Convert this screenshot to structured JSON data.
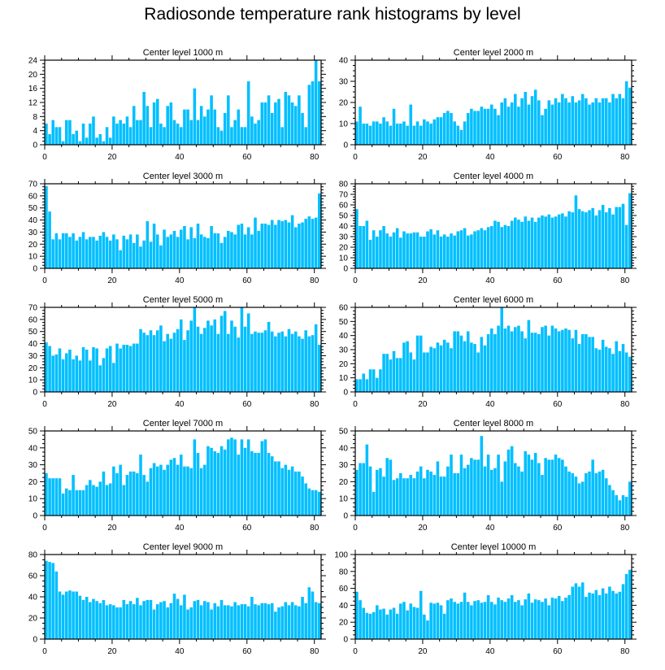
{
  "figure": {
    "title": "Radiosonde temperature rank histograms by level",
    "bar_color": "#00bfff",
    "axis_color": "#000000"
  },
  "chart_data": [
    {
      "type": "bar",
      "title": "Center level 1000 m",
      "xlim": [
        0,
        82
      ],
      "ylim": [
        0,
        24
      ],
      "xticks": [
        0,
        20,
        40,
        60,
        80
      ],
      "yticks": [
        0,
        4,
        8,
        12,
        16,
        20,
        24
      ],
      "x_start": 0,
      "values": [
        6,
        3,
        7,
        5,
        5,
        1,
        7,
        7,
        3,
        4,
        1,
        6,
        2,
        6,
        8,
        2,
        3,
        1,
        5,
        2,
        8,
        6,
        7,
        6,
        8,
        5,
        11,
        7,
        7,
        15,
        11,
        5,
        12,
        13,
        6,
        5,
        11,
        12,
        7,
        6,
        5,
        10,
        10,
        7,
        16,
        7,
        11,
        8,
        10,
        14,
        10,
        5,
        4,
        9,
        14,
        5,
        7,
        10,
        5,
        5,
        18,
        8,
        6,
        7,
        12,
        12,
        14,
        9,
        12,
        13,
        5,
        15,
        14,
        12,
        11,
        14,
        9,
        5,
        17,
        18,
        24,
        18
      ]
    },
    {
      "type": "bar",
      "title": "Center level 2000 m",
      "xlim": [
        0,
        82
      ],
      "ylim": [
        0,
        40
      ],
      "xticks": [
        0,
        20,
        40,
        60,
        80
      ],
      "yticks": [
        0,
        10,
        20,
        30,
        40
      ],
      "x_start": 0,
      "values": [
        11,
        18,
        10,
        10,
        9,
        11,
        11,
        10,
        13,
        11,
        9,
        17,
        10,
        10,
        11,
        9,
        19,
        9,
        11,
        9,
        12,
        11,
        10,
        12,
        13,
        13,
        15,
        16,
        15,
        11,
        9,
        7,
        11,
        15,
        17,
        16,
        16,
        18,
        17,
        17,
        19,
        17,
        14,
        20,
        22,
        18,
        20,
        24,
        18,
        22,
        25,
        19,
        23,
        26,
        21,
        14,
        17,
        21,
        19,
        22,
        20,
        24,
        22,
        20,
        23,
        20,
        21,
        24,
        22,
        19,
        20,
        22,
        20,
        22,
        22,
        20,
        24,
        22,
        24,
        22,
        30,
        27
      ]
    },
    {
      "type": "bar",
      "title": "Center level 3000 m",
      "xlim": [
        0,
        82
      ],
      "ylim": [
        0,
        70
      ],
      "xticks": [
        0,
        20,
        40,
        60,
        80
      ],
      "yticks": [
        0,
        10,
        20,
        30,
        40,
        50,
        60,
        70
      ],
      "x_start": 0,
      "values": [
        68,
        47,
        24,
        29,
        24,
        29,
        29,
        26,
        29,
        23,
        26,
        30,
        24,
        26,
        26,
        23,
        27,
        30,
        26,
        23,
        28,
        24,
        15,
        27,
        24,
        28,
        21,
        28,
        18,
        23,
        39,
        22,
        37,
        28,
        19,
        32,
        26,
        28,
        31,
        26,
        32,
        35,
        24,
        34,
        25,
        37,
        28,
        26,
        25,
        35,
        29,
        29,
        21,
        26,
        31,
        30,
        28,
        36,
        37,
        28,
        34,
        28,
        42,
        31,
        37,
        37,
        36,
        40,
        36,
        40,
        39,
        40,
        38,
        44,
        34,
        37,
        38,
        41,
        43,
        41,
        42,
        62
      ]
    },
    {
      "type": "bar",
      "title": "Center level 4000 m",
      "xlim": [
        0,
        82
      ],
      "ylim": [
        0,
        80
      ],
      "xticks": [
        0,
        20,
        40,
        60,
        80
      ],
      "yticks": [
        0,
        10,
        20,
        30,
        40,
        50,
        60,
        70,
        80
      ],
      "x_start": 0,
      "values": [
        56,
        40,
        40,
        45,
        27,
        36,
        30,
        36,
        40,
        33,
        30,
        34,
        38,
        29,
        35,
        33,
        33,
        34,
        34,
        30,
        30,
        35,
        37,
        32,
        36,
        30,
        32,
        30,
        33,
        31,
        35,
        36,
        38,
        31,
        32,
        35,
        36,
        38,
        36,
        39,
        40,
        45,
        44,
        39,
        41,
        40,
        45,
        48,
        46,
        44,
        49,
        45,
        48,
        44,
        48,
        50,
        49,
        51,
        48,
        49,
        51,
        52,
        49,
        54,
        53,
        69,
        56,
        54,
        53,
        55,
        57,
        50,
        55,
        60,
        53,
        57,
        51,
        58,
        58,
        61,
        41,
        71
      ]
    },
    {
      "type": "bar",
      "title": "Center level 5000 m",
      "xlim": [
        0,
        82
      ],
      "ylim": [
        0,
        70
      ],
      "xticks": [
        0,
        20,
        40,
        60,
        80
      ],
      "yticks": [
        0,
        10,
        20,
        30,
        40,
        50,
        60,
        70
      ],
      "x_start": 0,
      "values": [
        41,
        38,
        30,
        31,
        36,
        27,
        32,
        35,
        27,
        30,
        26,
        37,
        35,
        26,
        37,
        36,
        22,
        28,
        36,
        38,
        24,
        40,
        36,
        39,
        39,
        38,
        40,
        40,
        52,
        49,
        47,
        51,
        47,
        51,
        55,
        42,
        48,
        44,
        49,
        52,
        60,
        43,
        51,
        59,
        71,
        54,
        48,
        53,
        59,
        55,
        60,
        48,
        63,
        67,
        48,
        59,
        54,
        45,
        70,
        54,
        65,
        48,
        50,
        49,
        49,
        51,
        58,
        50,
        46,
        49,
        50,
        46,
        52,
        48,
        50,
        46,
        44,
        51,
        46,
        47,
        56,
        39
      ]
    },
    {
      "type": "bar",
      "title": "Center level 6000 m",
      "xlim": [
        0,
        82
      ],
      "ylim": [
        0,
        60
      ],
      "xticks": [
        0,
        20,
        40,
        60,
        80
      ],
      "yticks": [
        0,
        10,
        20,
        30,
        40,
        50,
        60
      ],
      "x_start": 0,
      "values": [
        9,
        9,
        13,
        9,
        16,
        16,
        10,
        16,
        27,
        27,
        23,
        29,
        24,
        24,
        35,
        36,
        28,
        23,
        40,
        40,
        28,
        28,
        32,
        31,
        35,
        33,
        37,
        35,
        31,
        43,
        43,
        40,
        36,
        43,
        35,
        34,
        28,
        39,
        33,
        41,
        45,
        41,
        47,
        62,
        45,
        47,
        43,
        46,
        47,
        43,
        38,
        51,
        42,
        42,
        41,
        46,
        47,
        40,
        47,
        45,
        43,
        44,
        45,
        44,
        38,
        44,
        34,
        41,
        41,
        39,
        39,
        31,
        30,
        37,
        32,
        31,
        27,
        36,
        29,
        34,
        28,
        25
      ]
    },
    {
      "type": "bar",
      "title": "Center level 7000 m",
      "xlim": [
        0,
        82
      ],
      "ylim": [
        0,
        50
      ],
      "xticks": [
        0,
        20,
        40,
        60,
        80
      ],
      "yticks": [
        0,
        10,
        20,
        30,
        40,
        50
      ],
      "x_start": 0,
      "values": [
        25,
        22,
        22,
        22,
        22,
        13,
        16,
        15,
        24,
        15,
        15,
        15,
        18,
        21,
        18,
        17,
        20,
        26,
        18,
        19,
        29,
        25,
        30,
        18,
        24,
        26,
        26,
        25,
        36,
        24,
        20,
        28,
        31,
        29,
        30,
        27,
        30,
        33,
        34,
        30,
        36,
        29,
        29,
        28,
        45,
        37,
        28,
        30,
        41,
        40,
        38,
        37,
        41,
        39,
        45,
        46,
        45,
        36,
        45,
        40,
        45,
        38,
        37,
        37,
        44,
        45,
        37,
        35,
        32,
        32,
        28,
        30,
        27,
        29,
        26,
        26,
        23,
        19,
        16,
        15,
        15,
        14
      ]
    },
    {
      "type": "bar",
      "title": "Center level 8000 m",
      "xlim": [
        0,
        82
      ],
      "ylim": [
        0,
        50
      ],
      "xticks": [
        0,
        20,
        40,
        60,
        80
      ],
      "yticks": [
        0,
        10,
        20,
        30,
        40,
        50
      ],
      "x_start": 0,
      "values": [
        27,
        31,
        31,
        42,
        29,
        14,
        27,
        28,
        23,
        34,
        33,
        21,
        22,
        25,
        22,
        22,
        24,
        22,
        26,
        29,
        22,
        27,
        26,
        24,
        32,
        23,
        23,
        29,
        36,
        25,
        25,
        36,
        28,
        30,
        34,
        33,
        33,
        47,
        29,
        36,
        27,
        28,
        36,
        20,
        32,
        39,
        41,
        31,
        29,
        26,
        38,
        36,
        33,
        37,
        31,
        24,
        34,
        33,
        33,
        36,
        34,
        33,
        29,
        26,
        25,
        23,
        19,
        20,
        25,
        26,
        33,
        25,
        26,
        27,
        22,
        18,
        15,
        12,
        9,
        12,
        11,
        20
      ]
    },
    {
      "type": "bar",
      "title": "Center level 9000 m",
      "xlim": [
        0,
        82
      ],
      "ylim": [
        0,
        80
      ],
      "xticks": [
        0,
        20,
        40,
        60,
        80
      ],
      "yticks": [
        0,
        20,
        40,
        60,
        80
      ],
      "x_start": 0,
      "values": [
        74,
        73,
        72,
        64,
        45,
        42,
        45,
        46,
        45,
        45,
        41,
        37,
        40,
        35,
        38,
        36,
        34,
        37,
        32,
        33,
        32,
        30,
        30,
        37,
        33,
        36,
        33,
        39,
        32,
        36,
        37,
        37,
        28,
        33,
        35,
        36,
        30,
        34,
        43,
        38,
        32,
        42,
        28,
        30,
        36,
        37,
        32,
        36,
        35,
        28,
        34,
        31,
        37,
        32,
        32,
        31,
        35,
        32,
        33,
        33,
        31,
        40,
        33,
        32,
        34,
        34,
        33,
        34,
        26,
        30,
        31,
        35,
        32,
        35,
        32,
        31,
        40,
        34,
        49,
        45,
        35,
        34
      ]
    },
    {
      "type": "bar",
      "title": "Center level 10000 m",
      "xlim": [
        0,
        82
      ],
      "ylim": [
        0,
        100
      ],
      "xticks": [
        0,
        20,
        40,
        60,
        80
      ],
      "yticks": [
        0,
        20,
        40,
        60,
        80,
        100
      ],
      "x_start": 0,
      "values": [
        56,
        46,
        37,
        31,
        30,
        32,
        40,
        35,
        36,
        29,
        35,
        37,
        30,
        42,
        44,
        34,
        42,
        38,
        37,
        57,
        29,
        22,
        43,
        42,
        43,
        40,
        30,
        46,
        48,
        44,
        42,
        44,
        55,
        44,
        40,
        45,
        46,
        43,
        44,
        52,
        44,
        41,
        49,
        46,
        44,
        48,
        52,
        44,
        46,
        40,
        47,
        54,
        43,
        47,
        46,
        44,
        48,
        40,
        49,
        48,
        51,
        45,
        49,
        52,
        62,
        66,
        62,
        67,
        50,
        55,
        54,
        58,
        52,
        60,
        54,
        62,
        57,
        54,
        56,
        65,
        77,
        82
      ]
    }
  ]
}
